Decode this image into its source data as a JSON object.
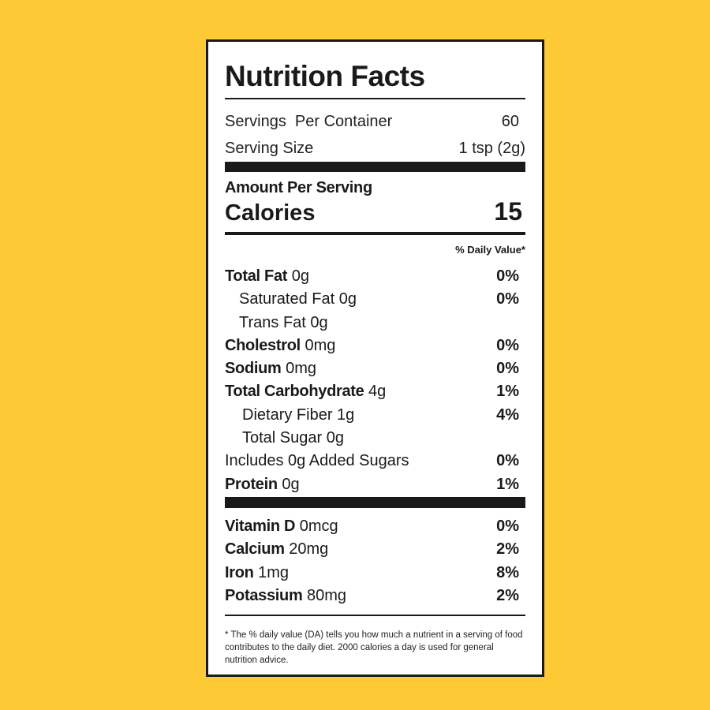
{
  "title": "Nutrition Facts",
  "servings_per_container": {
    "label": "Servings  Per Container",
    "value": "60"
  },
  "serving_size": {
    "label": "Serving Size",
    "value": "1 tsp (2g)"
  },
  "amount_per_serving": "Amount Per Serving",
  "calories": {
    "label": "Calories",
    "value": "15"
  },
  "daily_value_header": "% Daily Value*",
  "nutrients": [
    {
      "name": "Total Fat",
      "amount": "0g",
      "dv": "0%",
      "bold": true,
      "indent": 0
    },
    {
      "name": "Saturated Fat",
      "amount": "0g",
      "dv": "0%",
      "bold": false,
      "indent": 1
    },
    {
      "name": "Trans Fat",
      "amount": "0g",
      "dv": "",
      "bold": false,
      "indent": 1
    },
    {
      "name": "Cholestrol",
      "amount": "0mg",
      "dv": "0%",
      "bold": true,
      "indent": 0
    },
    {
      "name": "Sodium",
      "amount": "0mg",
      "dv": "0%",
      "bold": true,
      "indent": 0
    },
    {
      "name": "Total Carbohydrate",
      "amount": "4g",
      "dv": "1%",
      "bold": true,
      "indent": 0
    },
    {
      "name": "Dietary Fiber",
      "amount": "1g",
      "dv": "4%",
      "bold": false,
      "indent": 2
    },
    {
      "name": "Total Sugar",
      "amount": "0g",
      "dv": "",
      "bold": false,
      "indent": 2
    },
    {
      "name": "Includes 0g Added Sugars",
      "amount": "",
      "dv": "0%",
      "bold": false,
      "indent": 0
    },
    {
      "name": "Protein",
      "amount": "0g",
      "dv": "1%",
      "bold": true,
      "indent": 0
    }
  ],
  "vitamins": [
    {
      "name": "Vitamin D",
      "amount": "0mcg",
      "dv": "0%"
    },
    {
      "name": "Calcium",
      "amount": "20mg",
      "dv": "2%"
    },
    {
      "name": "Iron",
      "amount": "1mg",
      "dv": "8%"
    },
    {
      "name": "Potassium",
      "amount": "80mg",
      "dv": "2%"
    }
  ],
  "footnote": "* The % daily value (DA) tells you how much a nutrient in a serving of food contributes to the daily diet. 2000 calories a day is used for general nutrition advice.",
  "colors": {
    "background": "#fdc934",
    "ink": "#1a1a1a",
    "label": "#ffffff"
  }
}
